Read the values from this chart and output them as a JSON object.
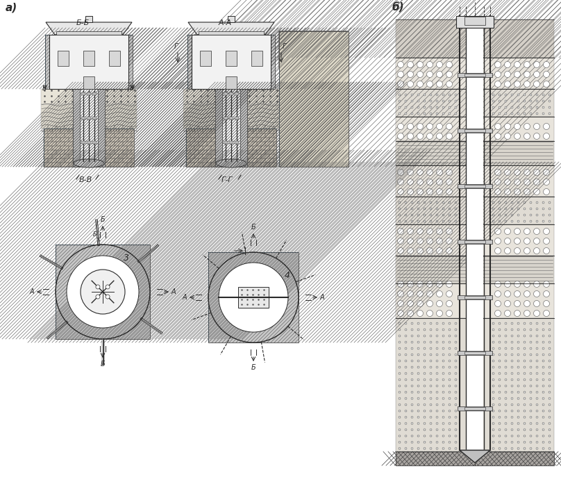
{
  "bg_color": "#ffffff",
  "line_color": "#2a2a2a",
  "label_a": "а)",
  "label_b": "б)",
  "section_BB": "Б-Б",
  "section_AA": "А-А",
  "section_VV": "В-В",
  "section_GG": "Г-Г",
  "label_3": "3",
  "label_4": "4"
}
